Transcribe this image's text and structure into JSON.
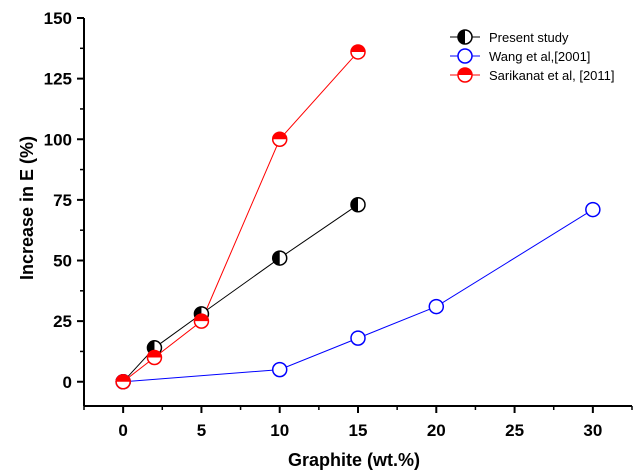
{
  "chart_data": {
    "type": "line",
    "xlabel": "Graphite (wt.%)",
    "ylabel": "Increase in E (%)",
    "xlim": [
      -2.5,
      32.5
    ],
    "ylim": [
      -10,
      150
    ],
    "xticks": [
      0,
      5,
      10,
      15,
      20,
      25,
      30
    ],
    "yticks": [
      0,
      25,
      50,
      75,
      100,
      125,
      150
    ],
    "xtick_labels": [
      "0",
      "5",
      "10",
      "15",
      "20",
      "25",
      "30"
    ],
    "ytick_labels": [
      "0",
      "25",
      "50",
      "75",
      "100",
      "125",
      "150"
    ],
    "grid": false,
    "legend_position": "top-right",
    "series": [
      {
        "name": "Present study",
        "color": "#000000",
        "marker": "circle-left-filled",
        "x": [
          0,
          2,
          5,
          10,
          15
        ],
        "y": [
          0,
          14,
          28,
          51,
          73
        ]
      },
      {
        "name": "Wang et al,[2001]",
        "color": "#0000ff",
        "marker": "circle-open",
        "x": [
          0,
          10,
          15,
          20,
          30
        ],
        "y": [
          0,
          5,
          18,
          31,
          71
        ]
      },
      {
        "name": "Sarikanat et al, [2011]",
        "color": "#ff0000",
        "marker": "circle-top-filled",
        "x": [
          0,
          2,
          5,
          10,
          15
        ],
        "y": [
          0,
          10,
          25,
          100,
          136
        ]
      }
    ]
  }
}
